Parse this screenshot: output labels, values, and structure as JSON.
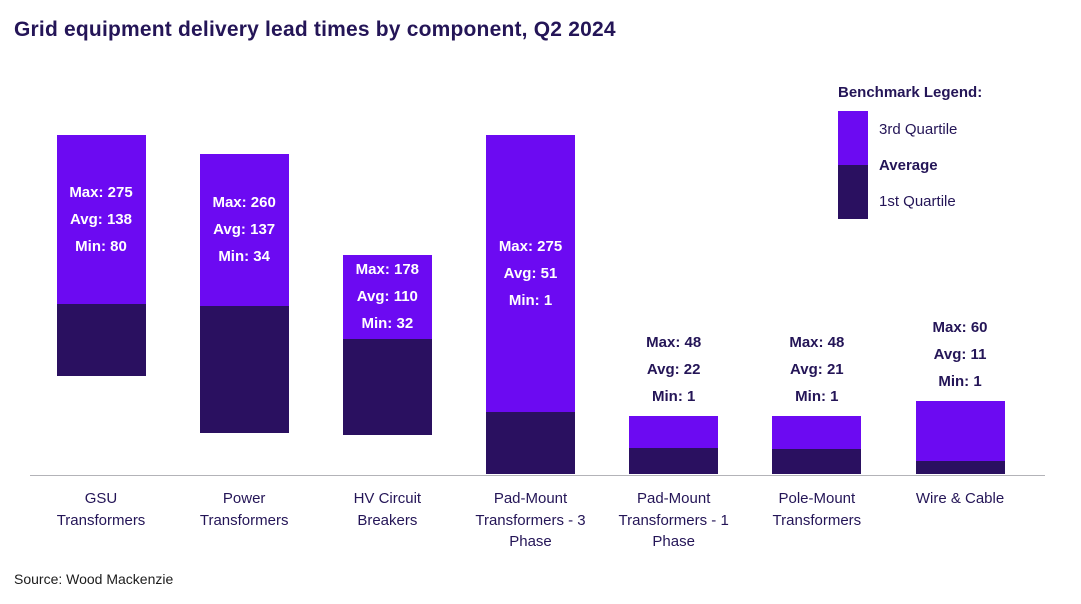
{
  "source": "Source: Wood Mackenzie",
  "legend": {
    "title": "Benchmark Legend:",
    "items": [
      "3rd Quartile",
      "Average",
      "1st Quartile"
    ]
  },
  "colors": {
    "quartile3_purple": "#6C0AF2",
    "quartile1_navy": "#2A1060",
    "text_dark_navy": "#241557",
    "axis_gray": "#B3B3B8",
    "value_label_white": "#FFFFFF",
    "background": "#FFFFFF"
  },
  "chart_data": {
    "type": "bar",
    "variant": "floating-range-bars",
    "title": "Grid equipment delivery lead times by component, Q2 2024",
    "ylim": [
      0,
      275
    ],
    "grid": false,
    "legend_position": "top-right",
    "value_label_format": [
      "Max: {max}",
      "Avg: {avg}",
      "Min: {min}"
    ],
    "components": [
      {
        "label": "GSU Transformers",
        "label_lines": [
          "GSU",
          "Transformers"
        ],
        "max": 275,
        "avg": 138,
        "min": 80
      },
      {
        "label": "Power Transformers",
        "label_lines": [
          "Power",
          "Transformers"
        ],
        "max": 260,
        "avg": 137,
        "min": 34
      },
      {
        "label": "HV Circuit Breakers",
        "label_lines": [
          "HV Circuit",
          "Breakers"
        ],
        "max": 178,
        "avg": 110,
        "min": 32
      },
      {
        "label": "Pad-Mount Transformers - 3 Phase",
        "label_lines": [
          "Pad-Mount",
          "Transformers - 3",
          "Phase"
        ],
        "max": 275,
        "avg": 51,
        "min": 1
      },
      {
        "label": "Pad-Mount Transformers - 1 Phase",
        "label_lines": [
          "Pad-Mount",
          "Transformers - 1",
          "Phase"
        ],
        "max": 48,
        "avg": 22,
        "min": 1
      },
      {
        "label": "Pole-Mount Transformers",
        "label_lines": [
          "Pole-Mount",
          "Transformers"
        ],
        "max": 48,
        "avg": 21,
        "min": 1
      },
      {
        "label": "Wire & Cable",
        "label_lines": [
          "Wire & Cable"
        ],
        "max": 60,
        "avg": 11,
        "min": 1
      }
    ]
  }
}
